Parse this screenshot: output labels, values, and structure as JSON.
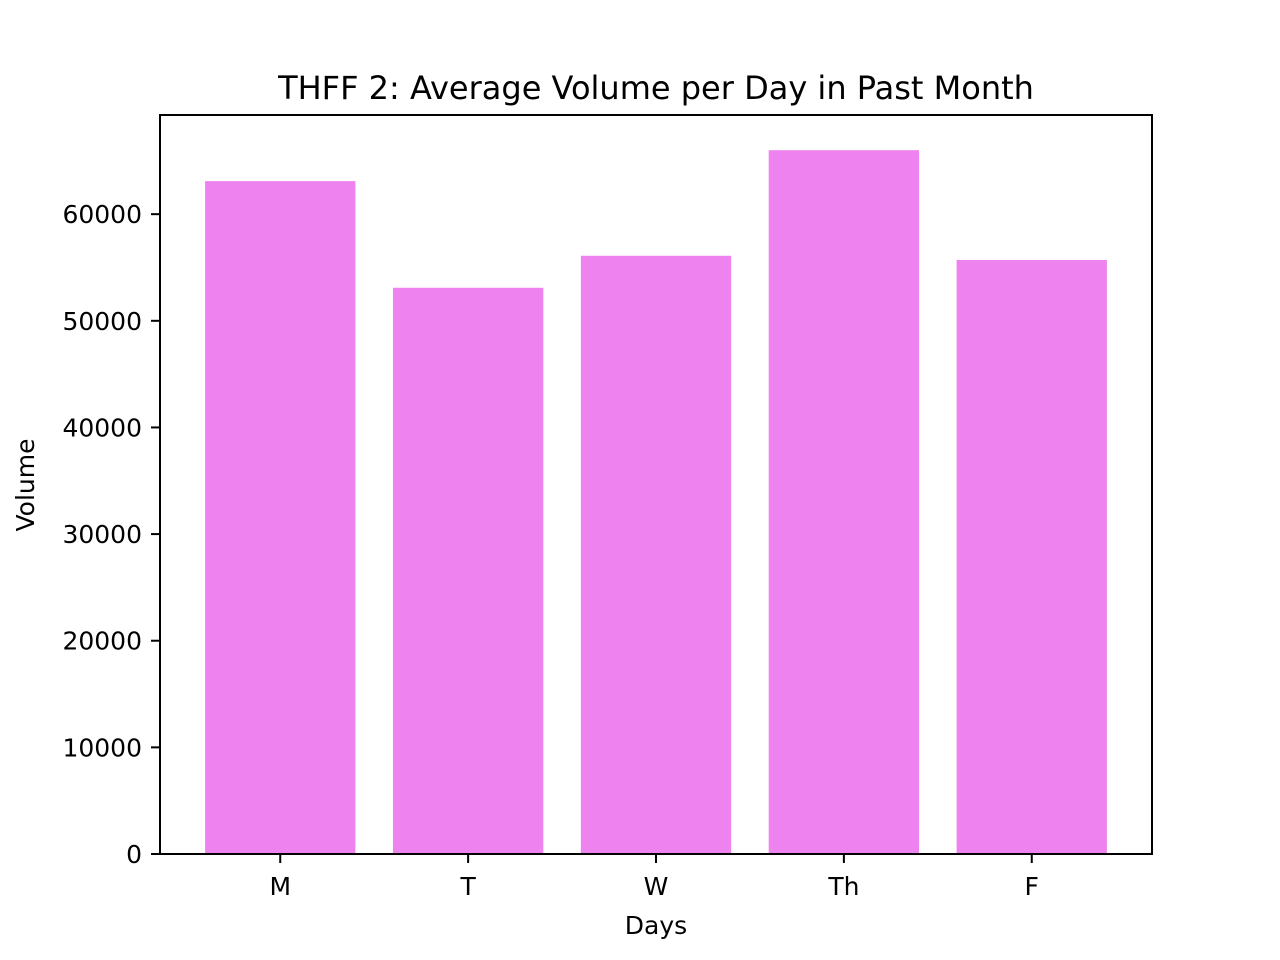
{
  "chart_data": {
    "type": "bar",
    "title": "THFF 2: Average Volume per Day in Past Month",
    "xlabel": "Days",
    "ylabel": "Volume",
    "categories": [
      "M",
      "T",
      "W",
      "Th",
      "F"
    ],
    "values": [
      63100,
      53100,
      56100,
      66000,
      55700
    ],
    "ylim": [
      0,
      69300
    ],
    "yticks": [
      0,
      10000,
      20000,
      30000,
      40000,
      50000,
      60000
    ],
    "ytick_labels": [
      "0",
      "10000",
      "20000",
      "30000",
      "40000",
      "50000",
      "60000"
    ],
    "bar_color": "#ee82ee",
    "grid": false,
    "legend": "none"
  }
}
